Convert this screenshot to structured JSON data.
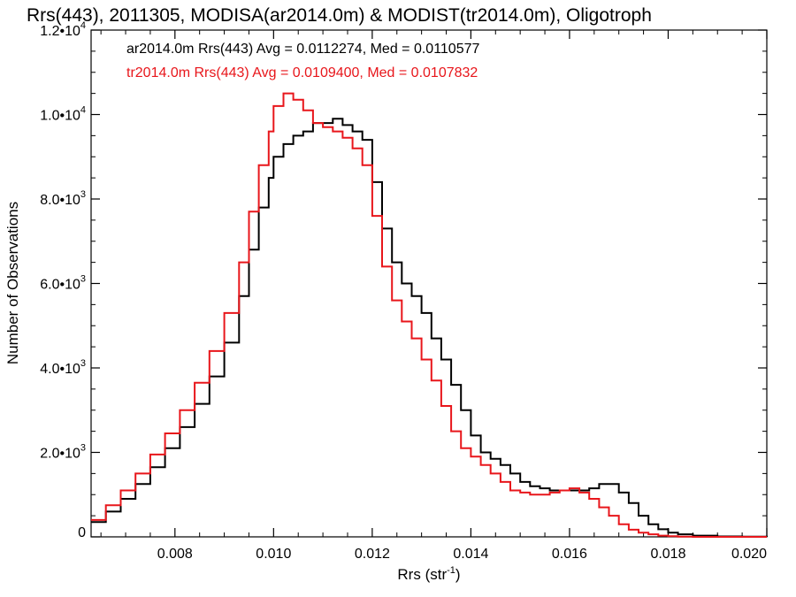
{
  "chart_data": {
    "type": "line",
    "title": "Rrs(443), 2011305, MODISA(ar2014.0m) & MODIST(tr2014.0m), Oligotroph",
    "xlabel": "Rrs (str",
    "xlabel_sup": "-1",
    "xlabel_suffix": ")",
    "ylabel": "Number of Observations",
    "xlim": [
      0.0063,
      0.02
    ],
    "ylim": [
      0,
      12000
    ],
    "x_ticks": [
      {
        "value": 0.008,
        "label": "0.008"
      },
      {
        "value": 0.01,
        "label": "0.010"
      },
      {
        "value": 0.012,
        "label": "0.012"
      },
      {
        "value": 0.014,
        "label": "0.014"
      },
      {
        "value": 0.016,
        "label": "0.016"
      },
      {
        "value": 0.018,
        "label": "0.018"
      },
      {
        "value": 0.02,
        "label": "0.020"
      }
    ],
    "y_ticks": [
      {
        "value": 0,
        "mant": "0",
        "exp": ""
      },
      {
        "value": 2000,
        "mant": "2.0•10",
        "exp": "3"
      },
      {
        "value": 4000,
        "mant": "4.0•10",
        "exp": "3"
      },
      {
        "value": 6000,
        "mant": "6.0•10",
        "exp": "3"
      },
      {
        "value": 8000,
        "mant": "8.0•10",
        "exp": "3"
      },
      {
        "value": 10000,
        "mant": "1.0•10",
        "exp": "4"
      },
      {
        "value": 12000,
        "mant": "1.2•10",
        "exp": "4"
      }
    ],
    "series": [
      {
        "name": "ar2014.0m Rrs(443) Avg = 0.0112274, Med = 0.0110577",
        "color": "#000000",
        "x": [
          0.0063,
          0.0066,
          0.0069,
          0.0072,
          0.0075,
          0.0078,
          0.0081,
          0.0084,
          0.0087,
          0.009,
          0.0093,
          0.0095,
          0.0097,
          0.0099,
          0.01,
          0.0102,
          0.0104,
          0.0106,
          0.0108,
          0.011,
          0.0112,
          0.0114,
          0.0116,
          0.0118,
          0.012,
          0.0122,
          0.0124,
          0.0126,
          0.0128,
          0.013,
          0.0132,
          0.0134,
          0.0136,
          0.0138,
          0.014,
          0.0142,
          0.0144,
          0.0146,
          0.0148,
          0.015,
          0.0152,
          0.0154,
          0.0156,
          0.0158,
          0.016,
          0.0162,
          0.0164,
          0.0166,
          0.0168,
          0.017,
          0.0172,
          0.0174,
          0.0176,
          0.0178,
          0.018,
          0.0182,
          0.0185,
          0.019,
          0.0195,
          0.02
        ],
        "y": [
          350,
          600,
          900,
          1250,
          1650,
          2100,
          2600,
          3150,
          3800,
          4600,
          5700,
          6800,
          7800,
          8500,
          9000,
          9300,
          9500,
          9600,
          9800,
          9800,
          9900,
          9750,
          9600,
          9400,
          8400,
          7300,
          6500,
          6000,
          5700,
          5300,
          4700,
          4200,
          3600,
          3000,
          2400,
          2000,
          1850,
          1700,
          1500,
          1300,
          1200,
          1150,
          1100,
          1100,
          1100,
          1100,
          1150,
          1250,
          1250,
          1050,
          800,
          500,
          300,
          180,
          100,
          60,
          30,
          10,
          5,
          0
        ]
      },
      {
        "name": "tr2014.0m Rrs(443) Avg = 0.0109400, Med = 0.0107832",
        "color": "#e8161b",
        "x": [
          0.0063,
          0.0066,
          0.0069,
          0.0072,
          0.0075,
          0.0078,
          0.0081,
          0.0084,
          0.0087,
          0.009,
          0.0093,
          0.0095,
          0.0097,
          0.0099,
          0.01,
          0.0102,
          0.0104,
          0.0106,
          0.0108,
          0.011,
          0.0112,
          0.0114,
          0.0116,
          0.0118,
          0.012,
          0.0122,
          0.0124,
          0.0126,
          0.0128,
          0.013,
          0.0132,
          0.0134,
          0.0136,
          0.0138,
          0.014,
          0.0142,
          0.0144,
          0.0146,
          0.0148,
          0.015,
          0.0152,
          0.0154,
          0.0156,
          0.0158,
          0.016,
          0.0162,
          0.0164,
          0.0166,
          0.0168,
          0.017,
          0.0172,
          0.0174,
          0.0176,
          0.0178,
          0.018,
          0.0182,
          0.0185,
          0.019,
          0.0195,
          0.02
        ],
        "y": [
          400,
          750,
          1100,
          1500,
          1950,
          2450,
          3000,
          3650,
          4400,
          5300,
          6500,
          7700,
          8800,
          9600,
          10200,
          10500,
          10350,
          10100,
          9800,
          9700,
          9600,
          9450,
          9200,
          8800,
          7600,
          6400,
          5600,
          5100,
          4700,
          4200,
          3700,
          3100,
          2500,
          2100,
          1900,
          1700,
          1500,
          1300,
          1100,
          1050,
          1000,
          1000,
          1050,
          1100,
          1150,
          1050,
          900,
          700,
          500,
          300,
          170,
          100,
          60,
          30,
          15,
          5,
          0,
          0,
          0,
          0
        ]
      }
    ],
    "grid": false,
    "legend_position": "top-left"
  }
}
